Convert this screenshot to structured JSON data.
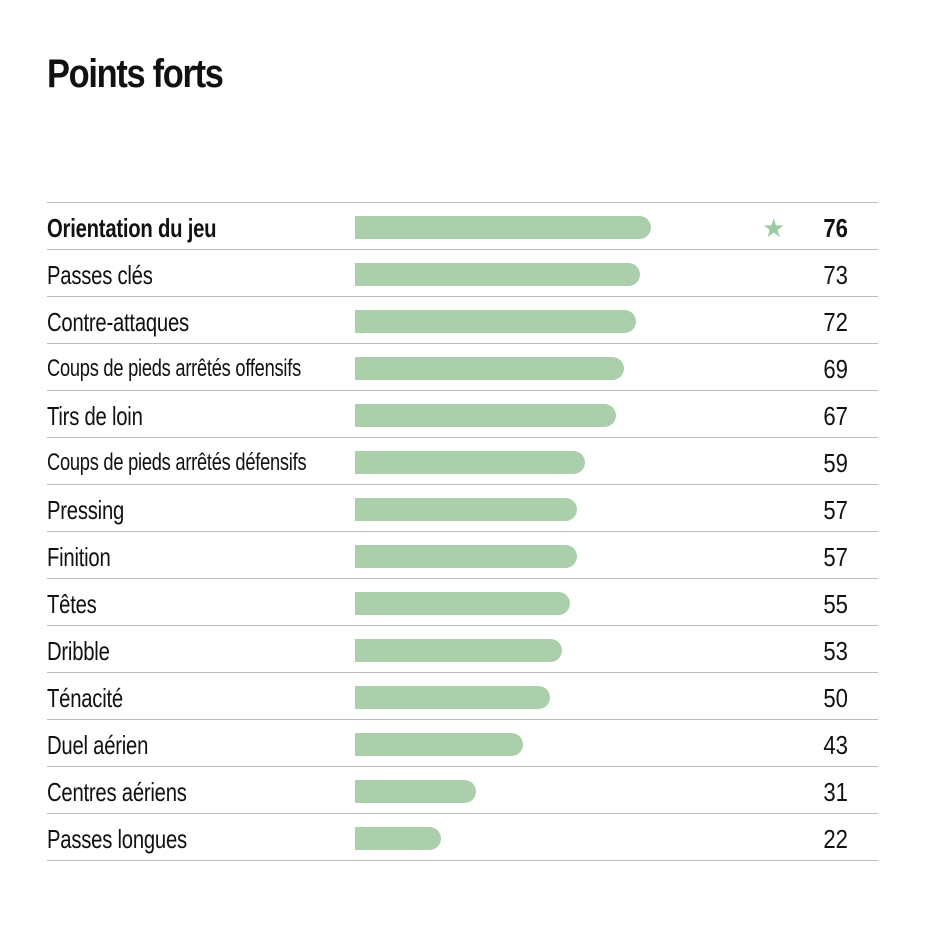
{
  "title": "Points forts",
  "colors": {
    "bar": "#abcfaa",
    "star": "#9dcba0",
    "rule": "#bdbdbd",
    "text": "#111111"
  },
  "icons": {
    "highlight": "star-icon"
  },
  "chart_data": {
    "type": "bar",
    "orientation": "horizontal",
    "title": "Points forts",
    "categories": [
      "Orientation du jeu",
      "Passes clés",
      "Contre-attaques",
      "Coups de pieds arrêtés offensifs",
      "Tirs de loin",
      "Coups de pieds arrêtés défensifs",
      "Pressing",
      "Finition",
      "Têtes",
      "Dribble",
      "Ténacité",
      "Duel aérien",
      "Centres aériens",
      "Passes longues"
    ],
    "values": [
      76,
      73,
      72,
      69,
      67,
      59,
      57,
      57,
      55,
      53,
      50,
      43,
      31,
      22
    ],
    "highlighted_index": 0,
    "xlim": [
      0,
      100
    ],
    "grid": false
  }
}
